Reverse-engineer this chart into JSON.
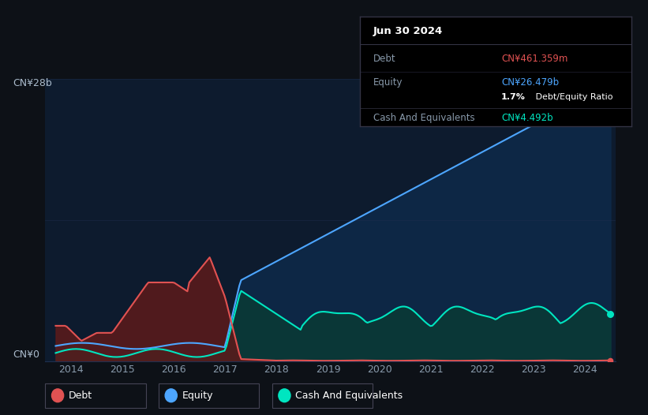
{
  "background_color": "#0d1117",
  "plot_bg_color": "#0d1b2e",
  "ylabel_top": "CN¥28b",
  "ylabel_bottom": "CN¥0",
  "x_tick_labels": [
    "2014",
    "2015",
    "2016",
    "2017",
    "2018",
    "2019",
    "2020",
    "2021",
    "2022",
    "2023",
    "2024"
  ],
  "legend_items": [
    "Debt",
    "Equity",
    "Cash And Equivalents"
  ],
  "legend_colors": [
    "#e05252",
    "#4da6ff",
    "#00e5c0"
  ],
  "tooltip_title": "Jun 30 2024",
  "debt_color": "#e05252",
  "debt_fill_color": "#5c1a1a",
  "equity_color": "#4da6ff",
  "equity_fill_color": "#0d2a4a",
  "cash_color": "#00e5c0",
  "cash_fill_color": "#0a3a35",
  "grid_color": "#1e3050",
  "ylim": [
    0,
    28
  ],
  "xlim_start": 2013.5,
  "xlim_end": 2024.6
}
